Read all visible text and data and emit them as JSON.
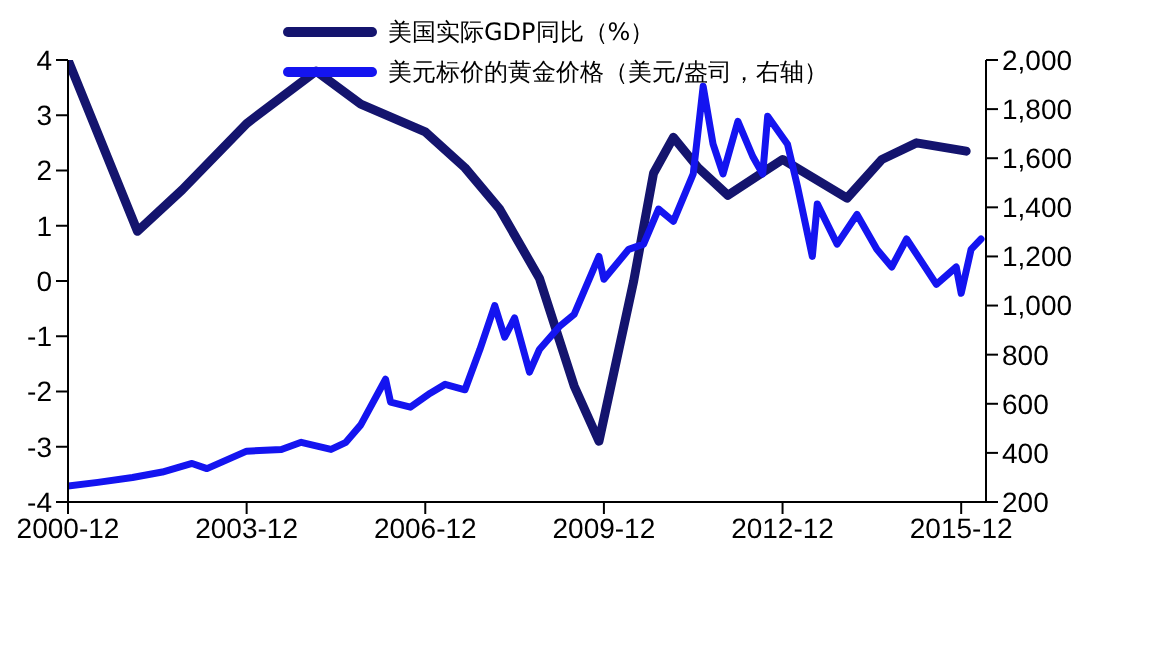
{
  "chart_data": {
    "type": "line",
    "xlim": [
      "2000-12",
      "2016-05"
    ],
    "xticks": [
      "2000-12",
      "2003-12",
      "2006-12",
      "2009-12",
      "2012-12",
      "2015-12"
    ],
    "ylim": [
      -4,
      4
    ],
    "yticks": [
      -4,
      -3,
      -2,
      -1,
      0,
      1,
      2,
      3,
      4
    ],
    "y2lim": [
      200,
      2000
    ],
    "y2ticks": [
      200,
      400,
      600,
      800,
      {
        "value": 1000,
        "label": "1,000"
      },
      {
        "value": 1200,
        "label": "1,200"
      },
      {
        "value": 1400,
        "label": "1,400"
      },
      {
        "value": 1600,
        "label": "1,600"
      },
      {
        "value": 1800,
        "label": "1,800"
      },
      {
        "value": 2000,
        "label": "2,000"
      }
    ],
    "legend": "top",
    "grid": false,
    "marker": "none",
    "line_style": "solid",
    "series": [
      {
        "name": "美国实际GDP同比（%）",
        "color": "#14146e",
        "x": [
          "2000-12",
          "2002-02",
          "2002-11",
          "2003-12",
          "2005-02",
          "2005-11",
          "2006-12",
          "2007-08",
          "2008-03",
          "2008-11",
          "2009-06",
          "2009-11",
          "2010-06",
          "2010-10",
          "2011-02",
          "2011-07",
          "2012-01",
          "2012-12",
          "2014-01",
          "2014-08",
          "2015-03",
          "2016-01"
        ],
        "values": [
          4.0,
          0.9,
          1.65,
          2.85,
          3.8,
          3.2,
          2.7,
          2.05,
          1.3,
          0.05,
          -1.9,
          -2.9,
          0,
          1.95,
          2.6,
          2.05,
          1.55,
          2.2,
          1.5,
          2.2,
          2.5,
          2.35
        ]
      },
      {
        "name": "美元标价的黄金价格（美元/盎司，右轴）",
        "color": "#1414f0",
        "axis": "y2",
        "x": [
          "2000-12",
          "2001-06",
          "2002-01",
          "2002-07",
          "2003-01",
          "2003-04",
          "2003-12",
          "2004-07",
          "2004-11",
          "2005-05",
          "2005-08",
          "2005-11",
          "2006-04",
          "2006-05",
          "2006-09",
          "2007-01",
          "2007-04",
          "2007-08",
          "2007-11",
          "2008-02",
          "2008-04",
          "2008-06",
          "2008-09",
          "2008-11",
          "2009-03",
          "2009-06",
          "2009-11",
          "2009-12",
          "2010-05",
          "2010-08",
          "2010-11",
          "2011-02",
          "2011-06",
          "2011-08",
          "2011-10",
          "2011-12",
          "2012-03",
          "2012-06",
          "2012-08",
          "2012-09",
          "2013-01",
          "2013-03",
          "2013-06",
          "2013-07",
          "2013-11",
          "2014-03",
          "2014-07",
          "2014-10",
          "2015-01",
          "2015-04",
          "2015-07",
          "2015-11",
          "2015-12",
          "2016-02",
          "2016-04"
        ],
        "values": [
          265,
          280,
          300,
          322,
          357,
          336,
          407,
          414,
          443,
          414,
          443,
          514,
          700,
          607,
          586,
          643,
          679,
          657,
          821,
          1000,
          871,
          950,
          729,
          821,
          914,
          964,
          1200,
          1107,
          1229,
          1250,
          1393,
          1343,
          1536,
          1893,
          1657,
          1536,
          1750,
          1607,
          1536,
          1771,
          1657,
          1486,
          1200,
          1414,
          1250,
          1371,
          1229,
          1157,
          1271,
          1179,
          1086,
          1157,
          1050,
          1229,
          1271
        ]
      }
    ]
  }
}
